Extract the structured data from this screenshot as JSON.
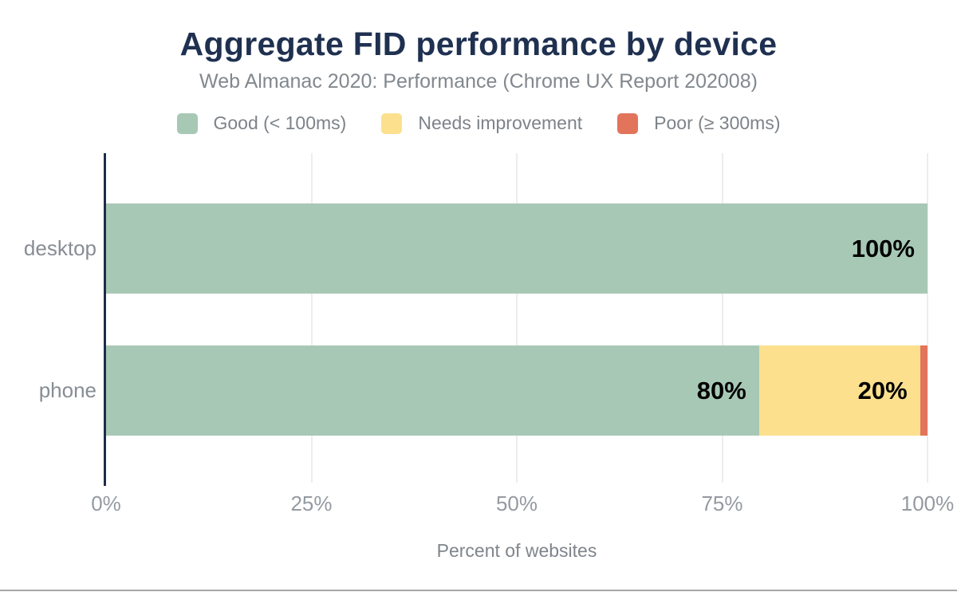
{
  "chart_data": {
    "type": "bar",
    "orientation": "horizontal",
    "stacked": true,
    "title": "Aggregate FID performance by device",
    "subtitle": "Web Almanac 2020: Performance (Chrome UX Report 202008)",
    "xlabel": "Percent of websites",
    "ylabel": "",
    "categories": [
      "desktop",
      "phone"
    ],
    "series": [
      {
        "name": "Good (< 100ms)",
        "color": "#a8c8b6",
        "values": [
          100,
          80
        ],
        "draw_pct": [
          100,
          79.5
        ],
        "labels": [
          "100%",
          "80%"
        ]
      },
      {
        "name": "Needs improvement",
        "color": "#fce08e",
        "values": [
          0,
          20
        ],
        "draw_pct": [
          0,
          19.6
        ],
        "labels": [
          "",
          "20%"
        ]
      },
      {
        "name": "Poor (≥ 300ms)",
        "color": "#e2745c",
        "values": [
          0,
          1
        ],
        "draw_pct": [
          0,
          0.9
        ],
        "labels": [
          "",
          ""
        ]
      }
    ],
    "x_ticks": [
      {
        "label": "0%",
        "value": 0
      },
      {
        "label": "25%",
        "value": 25
      },
      {
        "label": "50%",
        "value": 50
      },
      {
        "label": "75%",
        "value": 75
      },
      {
        "label": "100%",
        "value": 100
      }
    ],
    "xlim": [
      0,
      100
    ],
    "grid": "vertical",
    "legend_position": "top",
    "value_label_style": "bold black, inside right edge of segment"
  },
  "colors": {
    "title_navy": "#1f3050",
    "axis_line_navy": "#1c2c49",
    "gridline_gray": "#ededed",
    "subtitle_gray": "#82888e",
    "tick_gray": "#949aa1",
    "bar_label_black": "#000000",
    "bottom_rule_gray": "#a7a7a7"
  }
}
